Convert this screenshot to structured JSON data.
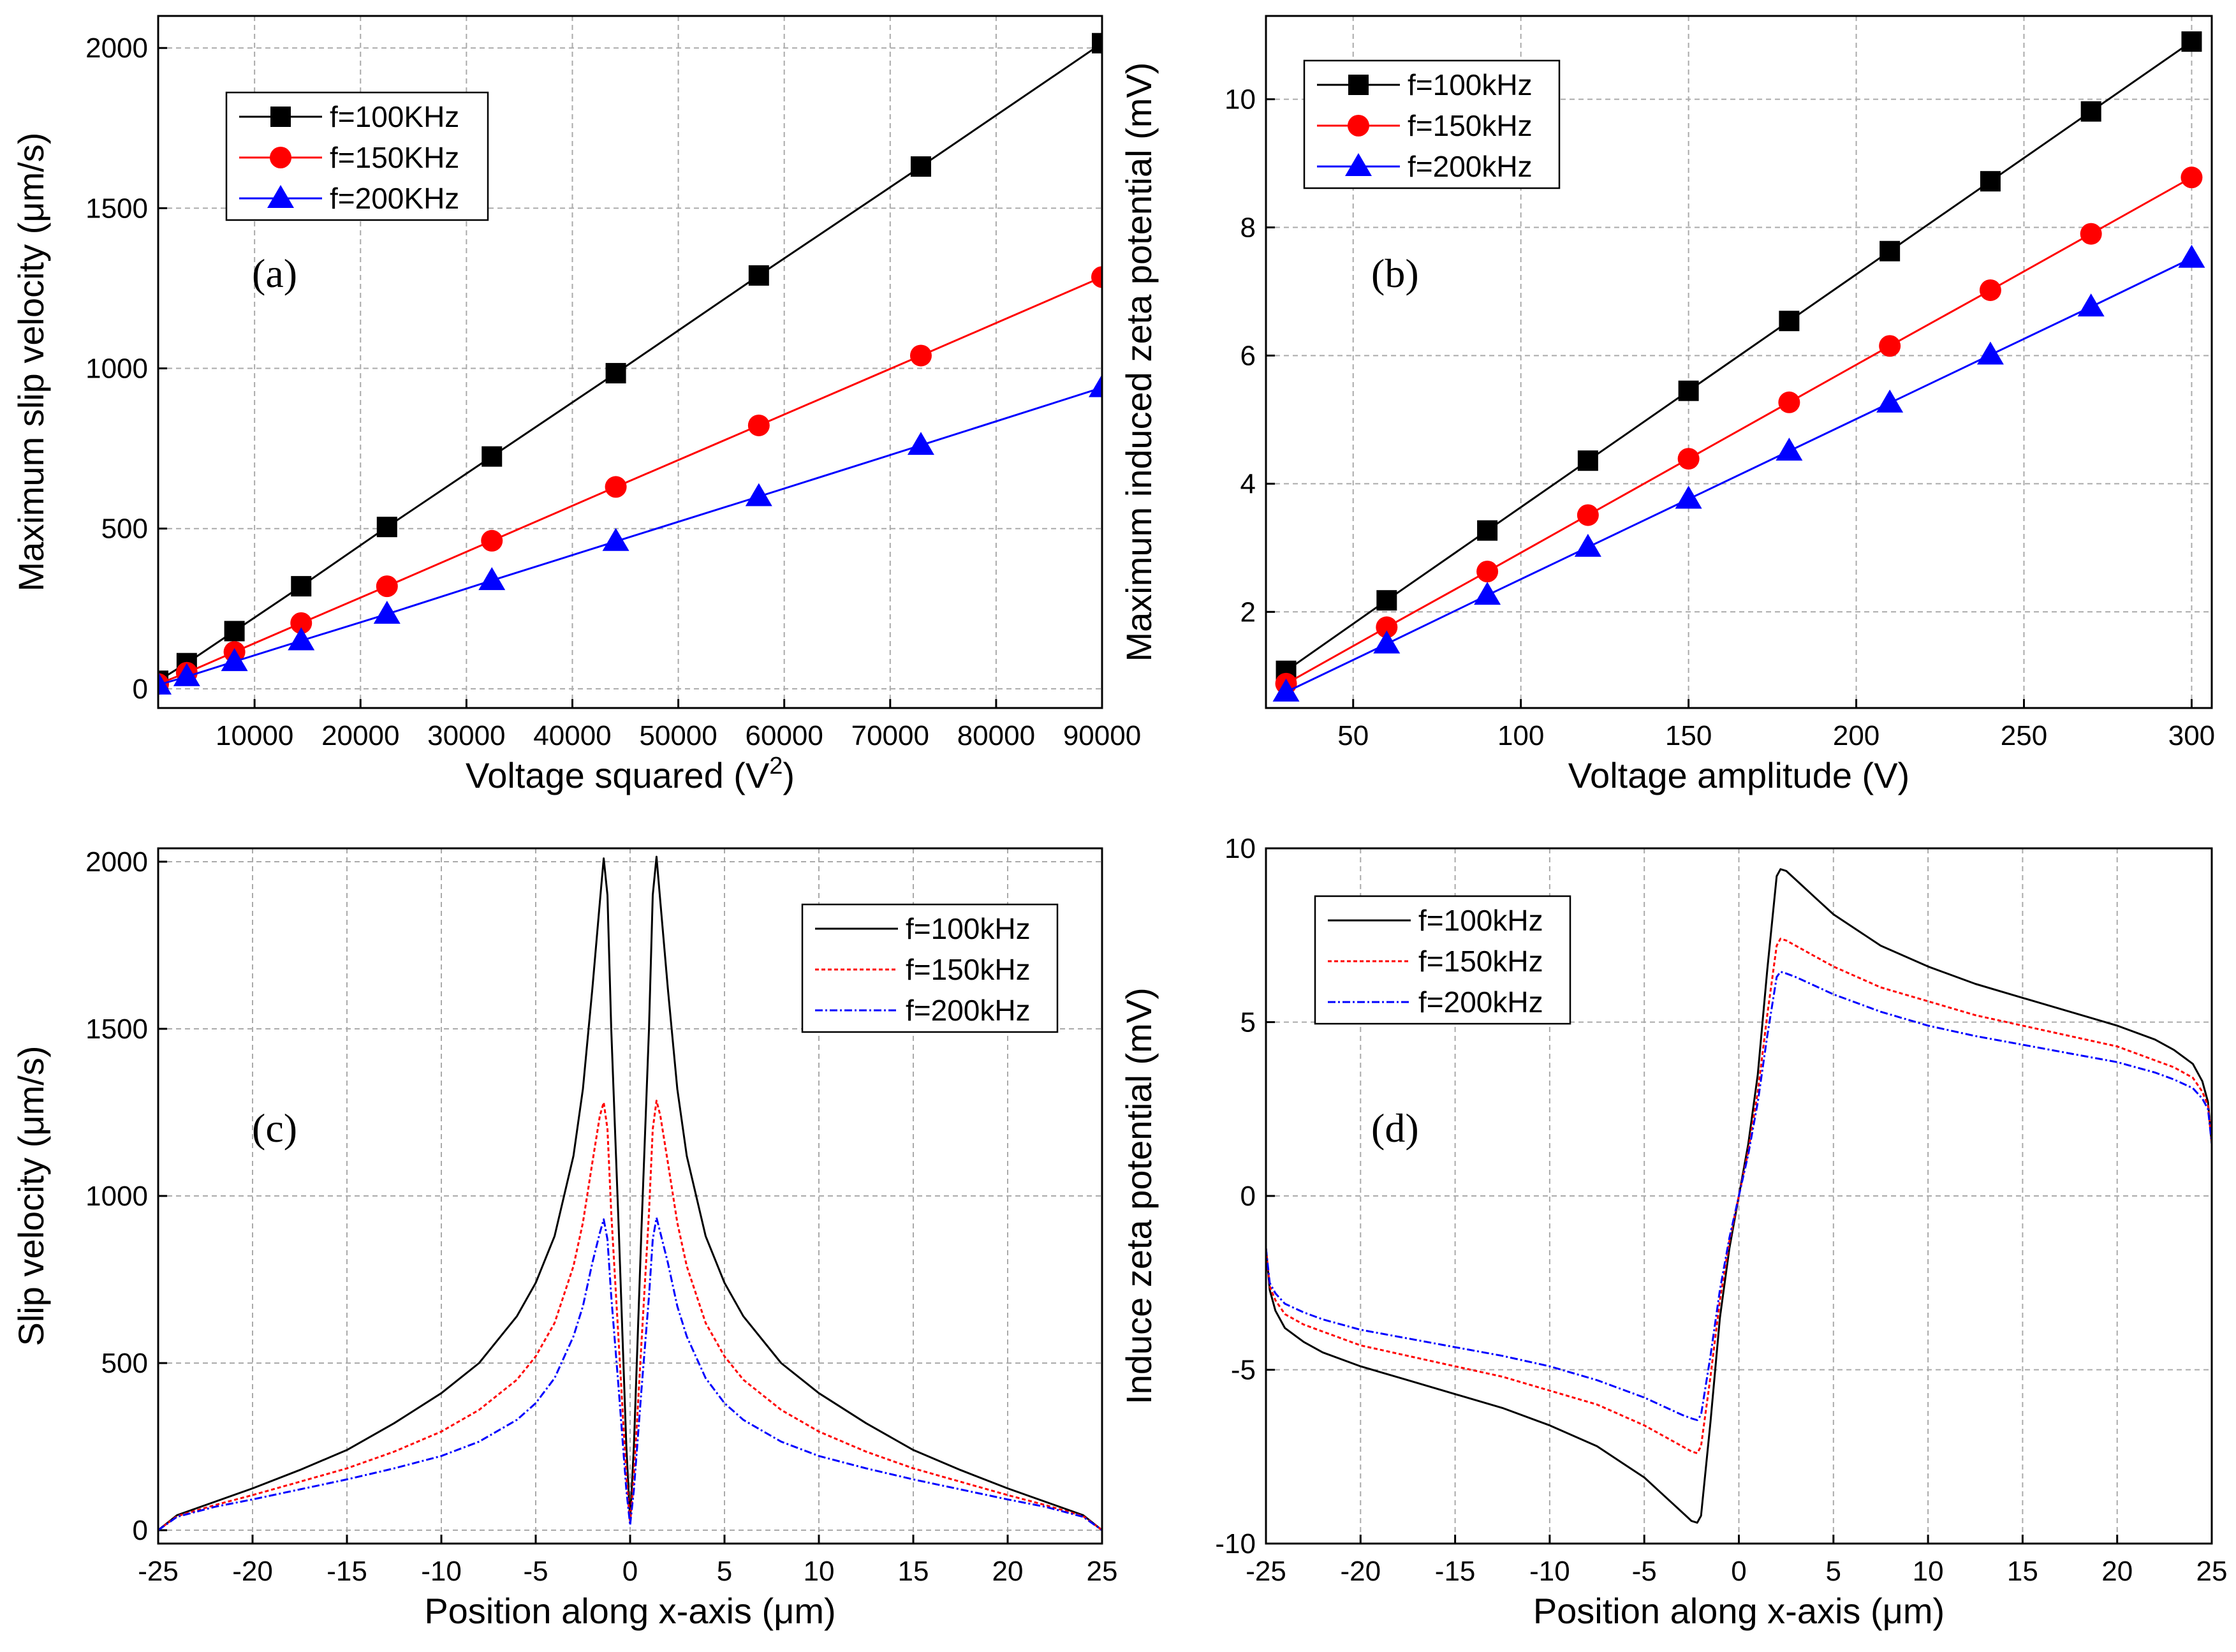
{
  "chart_data": [
    {
      "id": "a",
      "type": "line",
      "panel_label": "(a)",
      "xlabel": "Voltage squared (V",
      "xlabel_sup": "2",
      "xlabel_tail": ")",
      "ylabel": "Maximum slip velocity (μm/s)",
      "xlim": [
        900,
        90000
      ],
      "ylim": [
        -60,
        2100
      ],
      "xticks": [
        10000,
        20000,
        30000,
        40000,
        50000,
        60000,
        70000,
        80000,
        90000
      ],
      "yticks": [
        0,
        500,
        1000,
        1500,
        2000
      ],
      "legend_position": "top-left",
      "series": [
        {
          "name": "f=100KHz",
          "color": "#000000",
          "marker": "square",
          "dash": "none",
          "x": [
            900,
            3600,
            8100,
            14400,
            22500,
            32400,
            44100,
            57600,
            72900,
            90000
          ],
          "y": [
            25,
            80,
            180,
            320,
            505,
            725,
            985,
            1290,
            1630,
            2015
          ]
        },
        {
          "name": "f=150KHz",
          "color": "#ff0000",
          "marker": "circle",
          "dash": "none",
          "x": [
            900,
            3600,
            8100,
            14400,
            22500,
            32400,
            44100,
            57600,
            72900,
            90000
          ],
          "y": [
            15,
            50,
            115,
            205,
            320,
            462,
            630,
            822,
            1040,
            1285
          ]
        },
        {
          "name": "f=200KHz",
          "color": "#0000ff",
          "marker": "triangle",
          "dash": "none",
          "x": [
            900,
            3600,
            8100,
            14400,
            22500,
            32400,
            44100,
            57600,
            72900,
            90000
          ],
          "y": [
            12,
            38,
            85,
            150,
            233,
            338,
            460,
            600,
            760,
            940
          ]
        }
      ]
    },
    {
      "id": "b",
      "type": "line",
      "panel_label": "(b)",
      "xlabel": "Voltage amplitude (V)",
      "ylabel": "Maximum induced zeta potential (mV)",
      "xlim": [
        24,
        306
      ],
      "ylim": [
        0.5,
        11.3
      ],
      "xticks": [
        50,
        100,
        150,
        200,
        250,
        300
      ],
      "yticks": [
        2,
        4,
        6,
        8,
        10
      ],
      "legend_position": "top-left",
      "series": [
        {
          "name": "f=100kHz",
          "color": "#000000",
          "marker": "square",
          "dash": "none",
          "x": [
            30,
            60,
            90,
            120,
            150,
            180,
            210,
            240,
            270,
            300
          ],
          "y": [
            1.08,
            2.18,
            3.27,
            4.36,
            5.45,
            6.54,
            7.63,
            8.72,
            9.81,
            10.9
          ]
        },
        {
          "name": "f=150kHz",
          "color": "#ff0000",
          "marker": "circle",
          "dash": "none",
          "x": [
            30,
            60,
            90,
            120,
            150,
            180,
            210,
            240,
            270,
            300
          ],
          "y": [
            0.88,
            1.76,
            2.63,
            3.51,
            4.39,
            5.27,
            6.15,
            7.02,
            7.9,
            8.78
          ]
        },
        {
          "name": "f=200kHz",
          "color": "#0000ff",
          "marker": "triangle",
          "dash": "none",
          "x": [
            30,
            60,
            90,
            120,
            150,
            180,
            210,
            240,
            270,
            300
          ],
          "y": [
            0.75,
            1.5,
            2.26,
            3.01,
            3.76,
            4.51,
            5.26,
            6.01,
            6.76,
            7.52
          ]
        }
      ]
    },
    {
      "id": "c",
      "type": "line",
      "panel_label": "(c)",
      "xlabel": "Position along x-axis (μm)",
      "ylabel": "Slip velocity (μm/s)",
      "xlim": [
        -25,
        25
      ],
      "ylim": [
        -40,
        2040
      ],
      "xticks": [
        -25,
        -20,
        -15,
        -10,
        -5,
        0,
        5,
        10,
        15,
        20,
        25
      ],
      "yticks": [
        0,
        500,
        1000,
        1500,
        2000
      ],
      "legend_position": "top-right",
      "series": [
        {
          "name": "f=100kHz",
          "color": "#000000",
          "marker": "none",
          "dash": "none",
          "x": [
            -25,
            -24,
            -22,
            -20,
            -17.5,
            -15,
            -12.5,
            -10,
            -8,
            -6,
            -5,
            -4,
            -3,
            -2.5,
            -2,
            -1.6,
            -1.4,
            -1.2,
            -1,
            -0.6,
            -0.2,
            0,
            0.2,
            0.6,
            1,
            1.2,
            1.4,
            1.6,
            2,
            2.5,
            3,
            4,
            5,
            6,
            8,
            10,
            12.5,
            15,
            17.5,
            20,
            22,
            24,
            25
          ],
          "y": [
            0,
            45,
            85,
            125,
            180,
            240,
            320,
            410,
            500,
            640,
            740,
            880,
            1120,
            1320,
            1620,
            1880,
            2010,
            1900,
            1500,
            900,
            250,
            30,
            250,
            900,
            1500,
            1900,
            2015,
            1880,
            1620,
            1320,
            1120,
            880,
            740,
            640,
            500,
            410,
            320,
            240,
            180,
            125,
            85,
            45,
            0
          ]
        },
        {
          "name": "f=150kHz",
          "color": "#ff0000",
          "marker": "none",
          "dash": "6,4",
          "x": [
            -25,
            -24,
            -22,
            -20,
            -17.5,
            -15,
            -12.5,
            -10,
            -8,
            -6,
            -5,
            -4,
            -3,
            -2.5,
            -2,
            -1.6,
            -1.4,
            -1.2,
            -1,
            -0.6,
            -0.2,
            0,
            0.2,
            0.6,
            1,
            1.2,
            1.4,
            1.6,
            2,
            2.5,
            3,
            4,
            5,
            6,
            8,
            10,
            12.5,
            15,
            17.5,
            20,
            22,
            24,
            25
          ],
          "y": [
            0,
            42,
            75,
            105,
            145,
            185,
            235,
            295,
            360,
            450,
            520,
            620,
            790,
            920,
            1100,
            1240,
            1280,
            1200,
            950,
            560,
            160,
            20,
            160,
            560,
            950,
            1200,
            1285,
            1240,
            1100,
            920,
            790,
            620,
            520,
            450,
            360,
            295,
            235,
            185,
            145,
            105,
            75,
            42,
            0
          ]
        },
        {
          "name": "f=200kHz",
          "color": "#0000ff",
          "marker": "none",
          "dash": "12,4,3,4",
          "x": [
            -25,
            -24,
            -22,
            -20,
            -17.5,
            -15,
            -12.5,
            -10,
            -8,
            -6,
            -5,
            -4,
            -3,
            -2.5,
            -2,
            -1.6,
            -1.4,
            -1.2,
            -1,
            -0.6,
            -0.2,
            0,
            0.2,
            0.6,
            1,
            1.2,
            1.4,
            1.6,
            2,
            2.5,
            3,
            4,
            5,
            6,
            8,
            10,
            12.5,
            15,
            17.5,
            20,
            22,
            24,
            25
          ],
          "y": [
            0,
            40,
            70,
            92,
            122,
            152,
            185,
            222,
            265,
            330,
            380,
            455,
            580,
            670,
            800,
            890,
            930,
            870,
            700,
            420,
            120,
            15,
            120,
            420,
            700,
            870,
            935,
            890,
            800,
            670,
            580,
            455,
            380,
            330,
            265,
            222,
            185,
            152,
            122,
            92,
            70,
            40,
            0
          ]
        }
      ]
    },
    {
      "id": "d",
      "type": "line",
      "panel_label": "(d)",
      "xlabel": "Position along x-axis (μm)",
      "ylabel": "Induce zeta potential (mV)",
      "xlim": [
        -25,
        25
      ],
      "ylim": [
        -10,
        10
      ],
      "xticks": [
        -25,
        -20,
        -15,
        -10,
        -5,
        0,
        5,
        10,
        15,
        20,
        25
      ],
      "yticks": [
        -10,
        -5,
        0,
        5,
        10
      ],
      "legend_position": "top-left",
      "series": [
        {
          "name": "f=100kHz",
          "color": "#000000",
          "marker": "none",
          "dash": "none",
          "x": [
            -25,
            -24.8,
            -24.5,
            -24,
            -23,
            -22,
            -20,
            -17.5,
            -15,
            -12.5,
            -10,
            -7.5,
            -5,
            -4,
            -3,
            -2.5,
            -2.2,
            -2,
            -1.5,
            -1,
            -0.5,
            0,
            0.5,
            1,
            1.5,
            2,
            2.2,
            2.5,
            3,
            4,
            5,
            7.5,
            10,
            12.5,
            15,
            17.5,
            20,
            22,
            23,
            24,
            24.5,
            24.8,
            25
          ],
          "y": [
            -1.5,
            -2.7,
            -3.3,
            -3.8,
            -4.2,
            -4.5,
            -4.9,
            -5.3,
            -5.7,
            -6.1,
            -6.6,
            -7.2,
            -8.1,
            -8.6,
            -9.1,
            -9.35,
            -9.4,
            -9.2,
            -6.5,
            -3.5,
            -1.5,
            0,
            1.5,
            3.5,
            6.5,
            9.2,
            9.4,
            9.35,
            9.1,
            8.6,
            8.1,
            7.2,
            6.6,
            6.1,
            5.7,
            5.3,
            4.9,
            4.5,
            4.2,
            3.8,
            3.3,
            2.7,
            1.5
          ]
        },
        {
          "name": "f=150kHz",
          "color": "#ff0000",
          "marker": "none",
          "dash": "6,4",
          "x": [
            -25,
            -24.8,
            -24.5,
            -24,
            -23,
            -22,
            -20,
            -17.5,
            -15,
            -12.5,
            -10,
            -7.5,
            -5,
            -4,
            -3,
            -2.5,
            -2.2,
            -2,
            -1.5,
            -1,
            -0.5,
            0,
            0.5,
            1,
            1.5,
            2,
            2.2,
            2.5,
            3,
            4,
            5,
            7.5,
            10,
            12.5,
            15,
            17.5,
            20,
            22,
            23,
            24,
            24.5,
            24.8,
            25
          ],
          "y": [
            -1.5,
            -2.6,
            -3.0,
            -3.4,
            -3.7,
            -3.9,
            -4.3,
            -4.6,
            -4.9,
            -5.2,
            -5.6,
            -6.0,
            -6.6,
            -6.9,
            -7.2,
            -7.35,
            -7.4,
            -7.2,
            -5.2,
            -3.0,
            -1.3,
            0,
            1.3,
            3.0,
            5.2,
            7.2,
            7.4,
            7.35,
            7.2,
            6.9,
            6.6,
            6.0,
            5.6,
            5.2,
            4.9,
            4.6,
            4.3,
            3.9,
            3.7,
            3.4,
            3.0,
            2.6,
            1.5
          ]
        },
        {
          "name": "f=200kHz",
          "color": "#0000ff",
          "marker": "none",
          "dash": "12,4,3,4",
          "x": [
            -25,
            -24.8,
            -24.5,
            -24,
            -23,
            -22,
            -20,
            -17.5,
            -15,
            -12.5,
            -10,
            -7.5,
            -5,
            -4,
            -3,
            -2.5,
            -2.2,
            -2,
            -1.5,
            -1,
            -0.5,
            0,
            0.5,
            1,
            1.5,
            2,
            2.2,
            2.5,
            3,
            4,
            5,
            7.5,
            10,
            12.5,
            15,
            17.5,
            20,
            22,
            23,
            24,
            24.5,
            24.8,
            25
          ],
          "y": [
            -1.5,
            -2.5,
            -2.8,
            -3.1,
            -3.35,
            -3.55,
            -3.85,
            -4.1,
            -4.35,
            -4.6,
            -4.9,
            -5.3,
            -5.8,
            -6.05,
            -6.3,
            -6.4,
            -6.45,
            -6.3,
            -4.6,
            -2.7,
            -1.2,
            0,
            1.2,
            2.7,
            4.6,
            6.3,
            6.45,
            6.4,
            6.3,
            6.05,
            5.8,
            5.3,
            4.9,
            4.6,
            4.35,
            4.1,
            3.85,
            3.55,
            3.35,
            3.1,
            2.8,
            2.5,
            1.5
          ]
        }
      ]
    }
  ]
}
